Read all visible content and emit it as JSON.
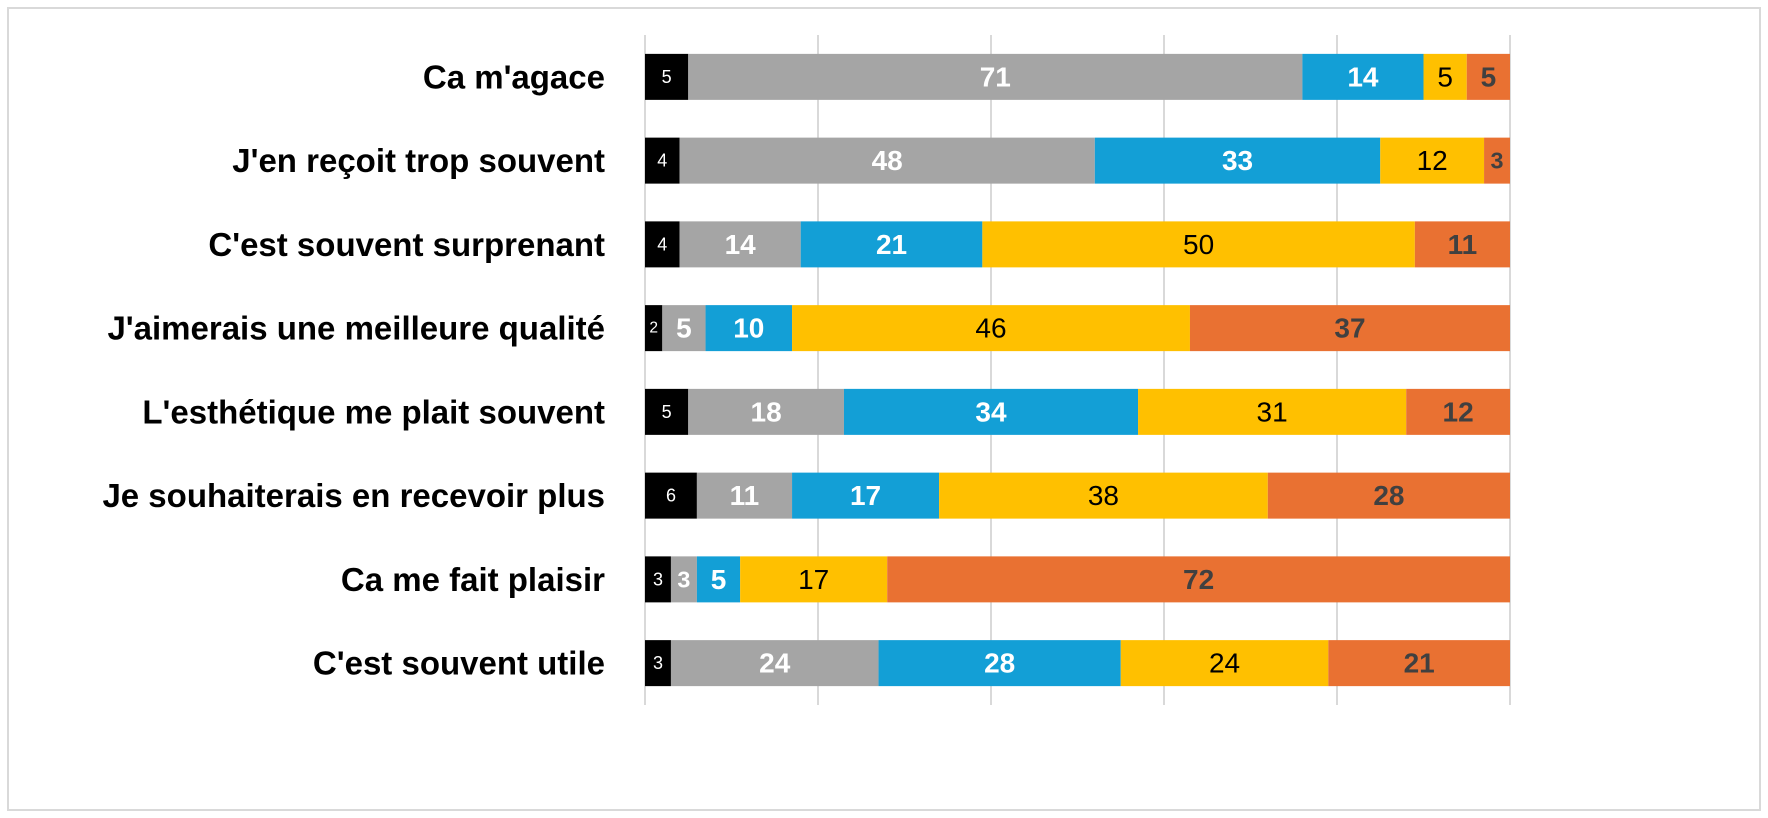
{
  "chart_data": {
    "type": "stacked_barh",
    "categories": [
      "Ca m'agace",
      "J'en reçoit trop souvent",
      "C'est souvent surprenant",
      "J'aimerais une meilleure qualité",
      "L'esthétique me plait souvent",
      "Je souhaiterais en recevoir plus",
      "Ca me fait plaisir",
      "C'est souvent utile"
    ],
    "series": [
      {
        "color": "#000000",
        "values": [
          5,
          4,
          4,
          2,
          5,
          6,
          3,
          3
        ]
      },
      {
        "color": "#a5a5a5",
        "values": [
          71,
          48,
          14,
          5,
          18,
          11,
          3,
          24
        ]
      },
      {
        "color": "#139fd6",
        "values": [
          14,
          33,
          21,
          10,
          34,
          17,
          5,
          28
        ]
      },
      {
        "color": "#ffc000",
        "values": [
          5,
          12,
          50,
          46,
          31,
          38,
          17,
          24
        ]
      },
      {
        "color": "#e97132",
        "values": [
          5,
          3,
          11,
          37,
          12,
          28,
          72,
          21
        ]
      }
    ],
    "xlim": [
      0,
      100
    ],
    "xticks": [
      0,
      20,
      40,
      60,
      80,
      100
    ],
    "grid": true
  }
}
